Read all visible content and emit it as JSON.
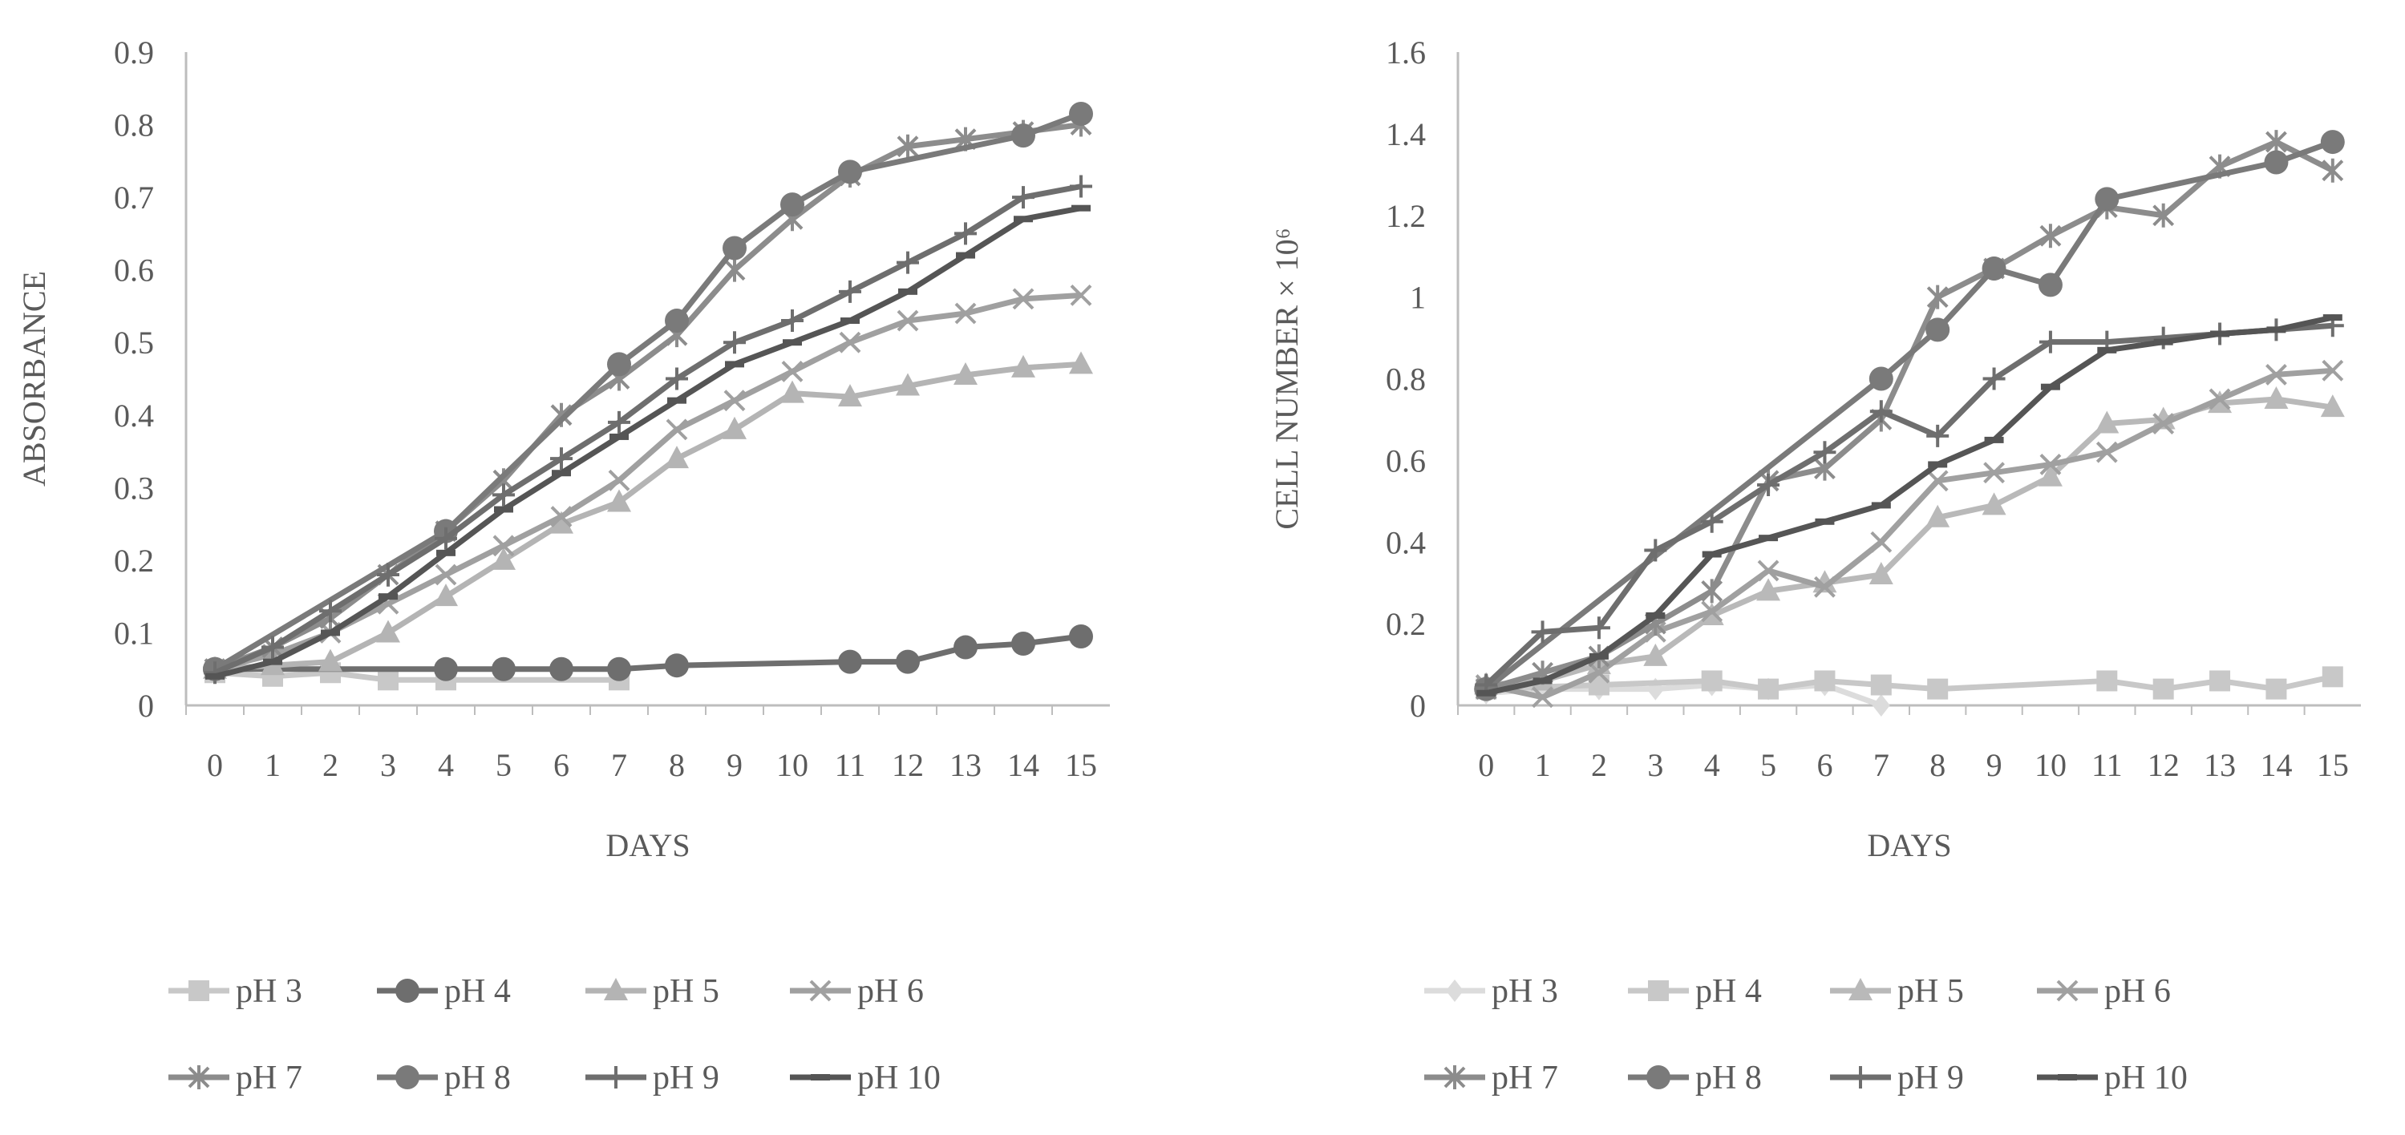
{
  "chart_data": [
    {
      "type": "line",
      "title": "",
      "xlabel": "DAYS",
      "ylabel": "ABSORBANCE",
      "ylim": [
        0,
        0.9
      ],
      "yticks": [
        0,
        0.1,
        0.2,
        0.3,
        0.4,
        0.5,
        0.6,
        0.7,
        0.8,
        0.9
      ],
      "ytick_labels": [
        "0",
        "0.1",
        "0.2",
        "0.3",
        "0.4",
        "0.5",
        "0.6",
        "0.7",
        "0.8",
        "0.9"
      ],
      "categories": [
        "0",
        "1",
        "2",
        "3",
        "4",
        "5",
        "6",
        "7",
        "8",
        "9",
        "10",
        "11",
        "12",
        "13",
        "14",
        "15"
      ],
      "legend_position": "bottom",
      "series": [
        {
          "name": "pH 3",
          "marker": "square",
          "color": "#c8c8c8",
          "x": [
            0,
            1,
            2,
            3,
            4,
            7
          ],
          "values": [
            0.045,
            0.04,
            0.045,
            0.035,
            0.035,
            0.035
          ]
        },
        {
          "name": "pH 4",
          "marker": "circle",
          "color": "#6e6e6e",
          "x": [
            0,
            4,
            5,
            6,
            7,
            8,
            11,
            12,
            13,
            14,
            15
          ],
          "values": [
            0.05,
            0.05,
            0.05,
            0.05,
            0.05,
            0.055,
            0.06,
            0.06,
            0.08,
            0.085,
            0.095
          ]
        },
        {
          "name": "pH 5",
          "marker": "triangle",
          "color": "#b4b4b4",
          "x": [
            0,
            1,
            2,
            3,
            4,
            5,
            6,
            7,
            8,
            9,
            10,
            11,
            12,
            13,
            14,
            15
          ],
          "values": [
            0.05,
            0.055,
            0.06,
            0.1,
            0.15,
            0.2,
            0.25,
            0.28,
            0.34,
            0.38,
            0.43,
            0.425,
            0.44,
            0.455,
            0.465,
            0.47
          ]
        },
        {
          "name": "pH 6",
          "marker": "x",
          "color": "#a0a0a0",
          "x": [
            0,
            1,
            2,
            3,
            4,
            5,
            6,
            7,
            8,
            9,
            10,
            11,
            12,
            13,
            14,
            15
          ],
          "values": [
            0.05,
            0.07,
            0.1,
            0.14,
            0.18,
            0.22,
            0.26,
            0.31,
            0.38,
            0.42,
            0.46,
            0.5,
            0.53,
            0.54,
            0.56,
            0.565
          ]
        },
        {
          "name": "pH 7",
          "marker": "star",
          "color": "#8c8c8c",
          "x": [
            0,
            1,
            2,
            3,
            4,
            5,
            6,
            7,
            8,
            9,
            10,
            11,
            12,
            13,
            14,
            15
          ],
          "values": [
            0.05,
            0.08,
            0.12,
            0.18,
            0.24,
            0.31,
            0.4,
            0.45,
            0.51,
            0.6,
            0.67,
            0.73,
            0.77,
            0.78,
            0.79,
            0.8
          ]
        },
        {
          "name": "pH 8",
          "marker": "circle",
          "color": "#7a7a7a",
          "x": [
            0,
            4,
            7,
            8,
            9,
            10,
            11,
            14,
            15
          ],
          "values": [
            0.05,
            0.24,
            0.47,
            0.53,
            0.63,
            0.69,
            0.735,
            0.785,
            0.815
          ]
        },
        {
          "name": "pH 9",
          "marker": "plus",
          "color": "#6e6e6e",
          "x": [
            0,
            1,
            2,
            3,
            4,
            5,
            6,
            7,
            8,
            9,
            10,
            11,
            12,
            13,
            14,
            15
          ],
          "values": [
            0.045,
            0.08,
            0.13,
            0.18,
            0.23,
            0.29,
            0.34,
            0.39,
            0.45,
            0.5,
            0.53,
            0.57,
            0.61,
            0.65,
            0.7,
            0.715
          ]
        },
        {
          "name": "pH 10",
          "marker": "dash",
          "color": "#555555",
          "x": [
            0,
            1,
            2,
            3,
            4,
            5,
            6,
            7,
            8,
            9,
            10,
            11,
            12,
            13,
            14,
            15
          ],
          "values": [
            0.04,
            0.06,
            0.1,
            0.15,
            0.21,
            0.27,
            0.32,
            0.37,
            0.42,
            0.47,
            0.5,
            0.53,
            0.57,
            0.62,
            0.67,
            0.685
          ]
        }
      ]
    },
    {
      "type": "line",
      "title": "",
      "xlabel": "DAYS",
      "ylabel": "CELL NUMBER × 10⁶",
      "ylim": [
        0,
        1.6
      ],
      "yticks": [
        0,
        0.2,
        0.4,
        0.6,
        0.8,
        1,
        1.2,
        1.4,
        1.6
      ],
      "ytick_labels": [
        "0",
        "0.2",
        "0.4",
        "0.6",
        "0.8",
        "1",
        "1.2",
        "1.4",
        "1.6"
      ],
      "categories": [
        "0",
        "1",
        "2",
        "3",
        "4",
        "5",
        "6",
        "7",
        "8",
        "9",
        "10",
        "11",
        "12",
        "13",
        "14",
        "15"
      ],
      "legend_position": "bottom",
      "series": [
        {
          "name": "pH 3",
          "marker": "diamond",
          "color": "#dcdcdc",
          "x": [
            0,
            1,
            2,
            3,
            4,
            5,
            6,
            7
          ],
          "values": [
            0.03,
            0.04,
            0.04,
            0.04,
            0.05,
            0.04,
            0.05,
            0.0
          ]
        },
        {
          "name": "pH 4",
          "marker": "square",
          "color": "#c8c8c8",
          "x": [
            0,
            2,
            4,
            5,
            6,
            7,
            8,
            11,
            12,
            13,
            14,
            15
          ],
          "values": [
            0.04,
            0.05,
            0.06,
            0.04,
            0.06,
            0.05,
            0.04,
            0.06,
            0.04,
            0.06,
            0.04,
            0.07
          ]
        },
        {
          "name": "pH 5",
          "marker": "triangle",
          "color": "#b9b9b9",
          "x": [
            0,
            1,
            2,
            3,
            4,
            5,
            6,
            7,
            8,
            9,
            10,
            11,
            12,
            13,
            14,
            15
          ],
          "values": [
            0.05,
            0.06,
            0.1,
            0.12,
            0.22,
            0.28,
            0.3,
            0.32,
            0.46,
            0.49,
            0.56,
            0.69,
            0.7,
            0.74,
            0.75,
            0.73
          ]
        },
        {
          "name": "pH 6",
          "marker": "x",
          "color": "#a0a0a0",
          "x": [
            0,
            1,
            2,
            3,
            4,
            5,
            6,
            7,
            8,
            9,
            10,
            11,
            12,
            13,
            14,
            15
          ],
          "values": [
            0.05,
            0.02,
            0.08,
            0.18,
            0.23,
            0.33,
            0.29,
            0.4,
            0.55,
            0.57,
            0.59,
            0.62,
            0.69,
            0.75,
            0.81,
            0.82
          ]
        },
        {
          "name": "pH 7",
          "marker": "star",
          "color": "#8c8c8c",
          "x": [
            0,
            1,
            2,
            3,
            4,
            5,
            6,
            7,
            8,
            9,
            10,
            11,
            12,
            13,
            14,
            15
          ],
          "values": [
            0.04,
            0.08,
            0.12,
            0.2,
            0.28,
            0.55,
            0.58,
            0.7,
            1.0,
            1.07,
            1.15,
            1.22,
            1.2,
            1.32,
            1.38,
            1.31
          ]
        },
        {
          "name": "pH 8",
          "marker": "circle",
          "color": "#7a7a7a",
          "x": [
            0,
            7,
            8,
            9,
            10,
            11,
            14,
            15
          ],
          "values": [
            0.04,
            0.8,
            0.92,
            1.07,
            1.03,
            1.24,
            1.33,
            1.38
          ]
        },
        {
          "name": "pH 9",
          "marker": "plus",
          "color": "#6e6e6e",
          "x": [
            0,
            1,
            2,
            3,
            4,
            5,
            6,
            7,
            8,
            9,
            10,
            11,
            12,
            13,
            14,
            15
          ],
          "values": [
            0.05,
            0.18,
            0.19,
            0.38,
            0.45,
            0.54,
            0.62,
            0.72,
            0.66,
            0.8,
            0.89,
            0.89,
            0.9,
            0.91,
            0.92,
            0.93
          ]
        },
        {
          "name": "pH 10",
          "marker": "dash",
          "color": "#555555",
          "x": [
            0,
            1,
            2,
            3,
            4,
            5,
            6,
            7,
            8,
            9,
            10,
            11,
            12,
            13,
            14,
            15
          ],
          "values": [
            0.03,
            0.06,
            0.12,
            0.22,
            0.37,
            0.41,
            0.45,
            0.49,
            0.59,
            0.65,
            0.78,
            0.87,
            0.89,
            0.91,
            0.92,
            0.95
          ]
        }
      ]
    }
  ]
}
